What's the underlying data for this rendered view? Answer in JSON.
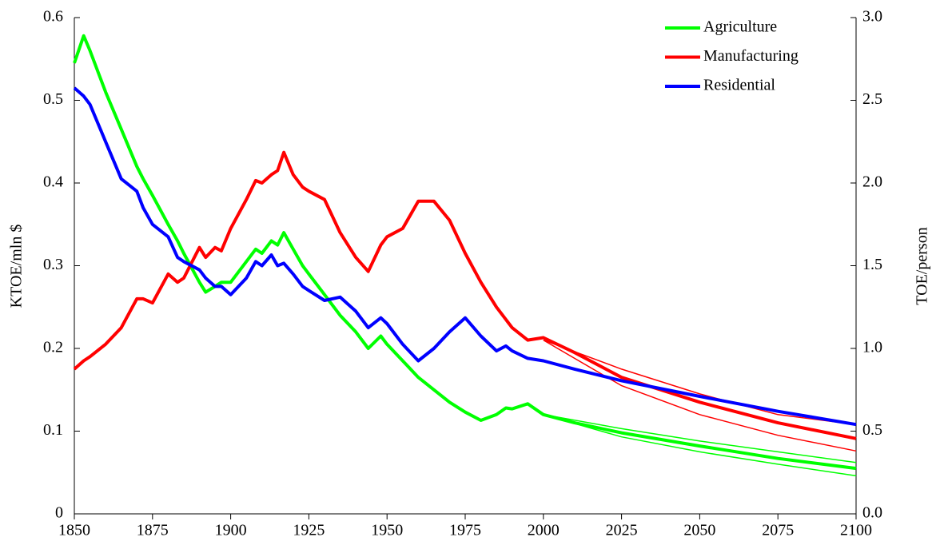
{
  "chart_data": {
    "type": "line",
    "xlabel": null,
    "ylabel": "KTOE/mln $",
    "y2label": "TOE/person",
    "x": [
      1850,
      1853,
      1855,
      1860,
      1865,
      1870,
      1872,
      1875,
      1880,
      1883,
      1885,
      1890,
      1892,
      1895,
      1897,
      1900,
      1905,
      1908,
      1910,
      1913,
      1915,
      1917,
      1920,
      1923,
      1925,
      1930,
      1935,
      1940,
      1944,
      1948,
      1950,
      1955,
      1960,
      1965,
      1970,
      1975,
      1980,
      1985,
      1988,
      1990,
      1995,
      2000,
      2010,
      2025,
      2050,
      2075,
      2100
    ],
    "series": [
      {
        "name": "Agriculture",
        "color": "#00ff00",
        "values": [
          0.545,
          0.578,
          0.56,
          0.51,
          0.465,
          0.42,
          0.405,
          0.385,
          0.35,
          0.33,
          0.315,
          0.28,
          0.268,
          0.275,
          0.28,
          0.28,
          0.305,
          0.32,
          0.315,
          0.33,
          0.325,
          0.34,
          0.32,
          0.3,
          0.29,
          0.265,
          0.24,
          0.22,
          0.2,
          0.215,
          0.205,
          0.185,
          0.165,
          0.15,
          0.135,
          0.123,
          0.113,
          0.12,
          0.128,
          0.127,
          0.133,
          0.12,
          0.11,
          0.098,
          0.082,
          0.067,
          0.055
        ],
        "forecast": {
          "x": [
            2000,
            2025,
            2050,
            2075,
            2100
          ],
          "low": [
            0.12,
            0.093,
            0.075,
            0.06,
            0.046
          ],
          "high": [
            0.12,
            0.103,
            0.088,
            0.075,
            0.062
          ]
        }
      },
      {
        "name": "Manufacturing",
        "color": "#ff0000",
        "values": [
          0.175,
          0.185,
          0.19,
          0.205,
          0.225,
          0.26,
          0.26,
          0.255,
          0.29,
          0.28,
          0.285,
          0.322,
          0.31,
          0.322,
          0.318,
          0.345,
          0.38,
          0.403,
          0.4,
          0.41,
          0.415,
          0.437,
          0.41,
          0.395,
          0.39,
          0.38,
          0.34,
          0.31,
          0.293,
          0.325,
          0.335,
          0.345,
          0.378,
          0.378,
          0.355,
          0.315,
          0.28,
          0.25,
          0.235,
          0.225,
          0.21,
          0.213,
          0.195,
          0.165,
          0.135,
          0.11,
          0.091
        ],
        "forecast": {
          "x": [
            2000,
            2025,
            2050,
            2075,
            2100
          ],
          "low": [
            0.21,
            0.155,
            0.12,
            0.095,
            0.076
          ],
          "high": [
            0.21,
            0.175,
            0.145,
            0.12,
            0.108
          ]
        }
      },
      {
        "name": "Residential",
        "color": "#0000ff",
        "axis": "y2",
        "values": [
          2.575,
          2.525,
          2.475,
          2.25,
          2.025,
          1.95,
          1.85,
          1.75,
          1.675,
          1.55,
          1.525,
          1.475,
          1.425,
          1.375,
          1.375,
          1.325,
          1.425,
          1.525,
          1.5,
          1.565,
          1.5,
          1.515,
          1.45,
          1.375,
          1.35,
          1.29,
          1.31,
          1.225,
          1.125,
          1.185,
          1.15,
          1.025,
          0.925,
          1.0,
          1.1,
          1.185,
          1.075,
          0.985,
          1.015,
          0.985,
          0.94,
          0.925,
          0.875,
          0.805,
          0.71,
          0.62,
          0.54
        ]
      }
    ],
    "xlim": [
      1850,
      2100
    ],
    "xticks": [
      1850,
      1875,
      1900,
      1925,
      1950,
      1975,
      2000,
      2025,
      2050,
      2075,
      2100
    ],
    "ylim": [
      0,
      0.6
    ],
    "yticks": [
      0,
      0.1,
      0.2,
      0.3,
      0.4,
      0.5,
      0.6
    ],
    "y2lim": [
      0,
      3
    ],
    "y2ticks": [
      {
        "value": 0,
        "label": "0.0"
      },
      0.5,
      {
        "value": 1,
        "label": "1.0"
      },
      1.5,
      {
        "value": 2,
        "label": "2.0"
      },
      2.5,
      {
        "value": 3,
        "label": "3.0"
      }
    ],
    "legend": "upper right",
    "grid": false
  }
}
